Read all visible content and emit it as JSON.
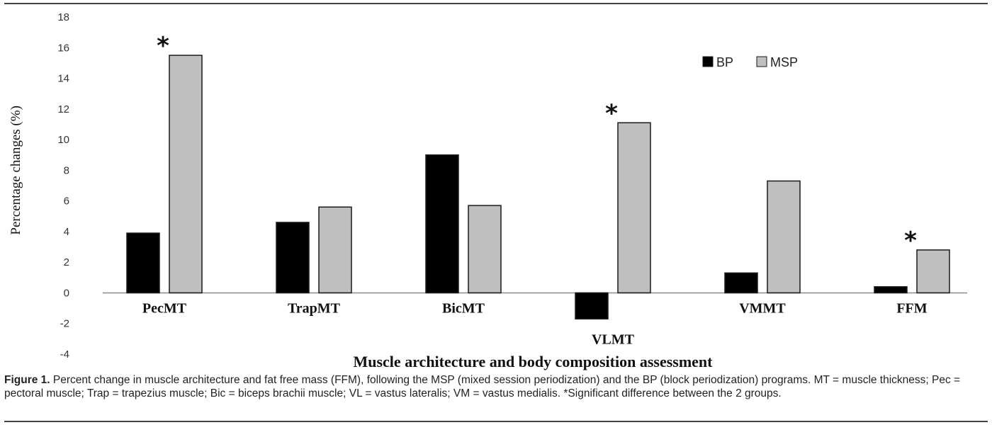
{
  "chart_data": {
    "type": "bar",
    "categories": [
      "PecMT",
      "TrapMT",
      "BicMT",
      "VLMT",
      "VMMT",
      "FFM"
    ],
    "series": [
      {
        "name": "BP",
        "values": [
          3.9,
          4.6,
          9.0,
          -1.7,
          1.3,
          0.4
        ],
        "color": "#000000"
      },
      {
        "name": "MSP",
        "values": [
          15.5,
          5.6,
          5.7,
          11.1,
          7.3,
          2.8
        ],
        "color": "#bfbfbf"
      }
    ],
    "significant": [
      true,
      false,
      false,
      true,
      false,
      true
    ],
    "significance_marker": "*",
    "ylabel": "Percentage changes (%)",
    "xlabel": "Muscle architecture and body composition assessment",
    "ylim": [
      -4,
      18
    ],
    "yticks": [
      -4,
      -2,
      0,
      2,
      4,
      6,
      8,
      10,
      12,
      14,
      16,
      18
    ],
    "legend_position": "top-right",
    "grid": false
  },
  "caption": {
    "label": "Figure 1.",
    "text": "Percent change in muscle architecture and fat free mass (FFM), following the MSP (mixed session periodization) and the BP (block periodization) programs. MT = muscle thickness; Pec = pectoral muscle; Trap = trapezius muscle; Bic = biceps brachii muscle; VL = vastus lateralis; VM = vastus medialis. *Significant difference between the 2 groups."
  }
}
